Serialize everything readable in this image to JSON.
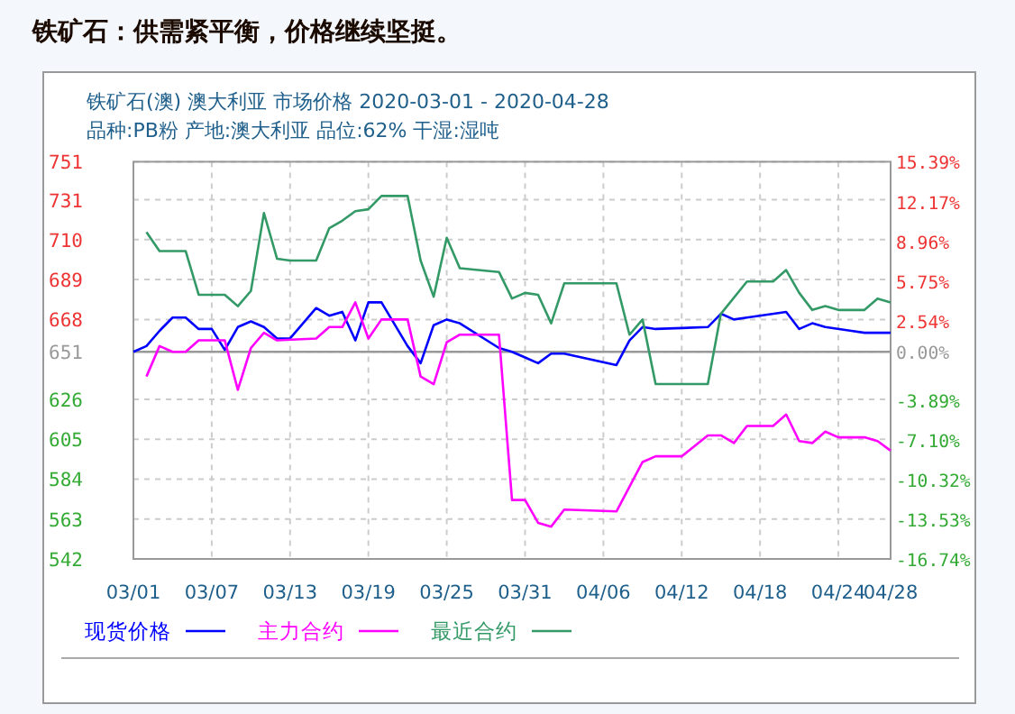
{
  "chart_data": {
    "type": "line",
    "title": "铁矿石：供需紧平衡，价格继续坚挺。",
    "subtitle": "铁矿石(澳) 澳大利亚 市场价格 2020-03-01 - 2020-04-28",
    "annotations": [
      "品种:PB粉 产地:澳大利亚 品位:62% 干湿:湿吨"
    ],
    "xlim": [
      "2020-03-01",
      "2020-04-28"
    ],
    "xticks": [
      {
        "value": "2020-03-01",
        "label": "03/01"
      },
      {
        "value": "2020-03-07",
        "label": "03/07"
      },
      {
        "value": "2020-03-13",
        "label": "03/13"
      },
      {
        "value": "2020-03-19",
        "label": "03/19"
      },
      {
        "value": "2020-03-25",
        "label": "03/25"
      },
      {
        "value": "2020-03-31",
        "label": "03/31"
      },
      {
        "value": "2020-04-06",
        "label": "04/06"
      },
      {
        "value": "2020-04-12",
        "label": "04/12"
      },
      {
        "value": "2020-04-18",
        "label": "04/18"
      },
      {
        "value": "2020-04-24",
        "label": "04/24"
      },
      {
        "value": "2020-04-28",
        "label": "04/28"
      }
    ],
    "ylim": [
      542,
      751
    ],
    "yticks": [
      542,
      563,
      584,
      605,
      626,
      651,
      668,
      689,
      710,
      731,
      751
    ],
    "y2lim": [
      -16.74,
      15.39
    ],
    "y2ticks": [
      {
        "value": -16.74,
        "label": "-16.74%"
      },
      {
        "value": -13.53,
        "label": "-13.53%"
      },
      {
        "value": -10.32,
        "label": "-10.32%"
      },
      {
        "value": -7.1,
        "label": "-7.10%"
      },
      {
        "value": -3.89,
        "label": "-3.89%"
      },
      {
        "value": 0,
        "label": "0.00%"
      },
      {
        "value": 2.54,
        "label": "2.54%"
      },
      {
        "value": 5.75,
        "label": "5.75%"
      },
      {
        "value": 8.96,
        "label": "8.96%"
      },
      {
        "value": 12.17,
        "label": "12.17%"
      },
      {
        "value": 15.39,
        "label": "15.39%"
      }
    ],
    "ref_lines": [
      {
        "axis": "y",
        "value": 651,
        "color": "#999999"
      }
    ],
    "grid": true,
    "legend": "bottom",
    "line_style": "solid",
    "marker": "none",
    "series": [
      {
        "name": "现货价格",
        "color": "#0000ff",
        "x": [
          "2020-03-01",
          "2020-03-02",
          "2020-03-03",
          "2020-03-04",
          "2020-03-05",
          "2020-03-06",
          "2020-03-07",
          "2020-03-08",
          "2020-03-09",
          "2020-03-10",
          "2020-03-11",
          "2020-03-12",
          "2020-03-13",
          "2020-03-15",
          "2020-03-16",
          "2020-03-17",
          "2020-03-18",
          "2020-03-19",
          "2020-03-20",
          "2020-03-22",
          "2020-03-23",
          "2020-03-24",
          "2020-03-25",
          "2020-03-26",
          "2020-03-29",
          "2020-03-30",
          "2020-03-31",
          "2020-04-01",
          "2020-04-02",
          "2020-04-03",
          "2020-04-07",
          "2020-04-08",
          "2020-04-09",
          "2020-04-10",
          "2020-04-14",
          "2020-04-15",
          "2020-04-16",
          "2020-04-17",
          "2020-04-20",
          "2020-04-21",
          "2020-04-22",
          "2020-04-23",
          "2020-04-25",
          "2020-04-26",
          "2020-04-28"
        ],
        "values": [
          651,
          654,
          662,
          669,
          669,
          663,
          663,
          652,
          664,
          667,
          664,
          658,
          658,
          674,
          670,
          672,
          657,
          677,
          677,
          654,
          645,
          665,
          668,
          666,
          653,
          651,
          648,
          645,
          650,
          650,
          644,
          657,
          664,
          663,
          664,
          671,
          668,
          669,
          672,
          663,
          666,
          664,
          662,
          661,
          661
        ]
      },
      {
        "name": "主力合约",
        "color": "#ff00ff",
        "x": [
          "2020-03-02",
          "2020-03-03",
          "2020-03-04",
          "2020-03-05",
          "2020-03-06",
          "2020-03-08",
          "2020-03-09",
          "2020-03-10",
          "2020-03-11",
          "2020-03-12",
          "2020-03-15",
          "2020-03-16",
          "2020-03-17",
          "2020-03-18",
          "2020-03-19",
          "2020-03-20",
          "2020-03-22",
          "2020-03-23",
          "2020-03-24",
          "2020-03-25",
          "2020-03-26",
          "2020-03-29",
          "2020-03-30",
          "2020-03-31",
          "2020-04-01",
          "2020-04-02",
          "2020-04-03",
          "2020-04-07",
          "2020-04-09",
          "2020-04-10",
          "2020-04-12",
          "2020-04-14",
          "2020-04-15",
          "2020-04-16",
          "2020-04-17",
          "2020-04-19",
          "2020-04-20",
          "2020-04-21",
          "2020-04-22",
          "2020-04-23",
          "2020-04-24",
          "2020-04-26",
          "2020-04-27",
          "2020-04-28"
        ],
        "values": [
          638,
          654,
          651,
          651,
          657,
          657,
          631,
          653,
          661,
          657,
          658,
          664,
          664,
          677,
          658,
          668,
          668,
          638,
          634,
          656,
          660,
          660,
          573,
          573,
          561,
          559,
          568,
          567,
          593,
          596,
          596,
          607,
          607,
          603,
          612,
          612,
          618,
          604,
          603,
          609,
          606,
          606,
          604,
          599
        ]
      },
      {
        "name": "最近合约",
        "color": "#339966",
        "x": [
          "2020-03-02",
          "2020-03-03",
          "2020-03-05",
          "2020-03-06",
          "2020-03-08",
          "2020-03-09",
          "2020-03-10",
          "2020-03-11",
          "2020-03-12",
          "2020-03-13",
          "2020-03-15",
          "2020-03-16",
          "2020-03-17",
          "2020-03-18",
          "2020-03-19",
          "2020-03-20",
          "2020-03-22",
          "2020-03-23",
          "2020-03-24",
          "2020-03-25",
          "2020-03-26",
          "2020-03-29",
          "2020-03-30",
          "2020-03-31",
          "2020-04-01",
          "2020-04-02",
          "2020-04-03",
          "2020-04-07",
          "2020-04-08",
          "2020-04-09",
          "2020-04-10",
          "2020-04-14",
          "2020-04-15",
          "2020-04-17",
          "2020-04-19",
          "2020-04-20",
          "2020-04-21",
          "2020-04-22",
          "2020-04-23",
          "2020-04-24",
          "2020-04-26",
          "2020-04-27",
          "2020-04-28"
        ],
        "values": [
          714,
          704,
          704,
          681,
          681,
          675,
          683,
          724,
          700,
          699,
          699,
          716,
          720,
          725,
          726,
          733,
          733,
          699,
          680,
          711,
          695,
          693,
          679,
          682,
          681,
          666,
          687,
          687,
          660,
          668,
          634,
          634,
          671,
          688,
          688,
          694,
          682,
          673,
          675,
          673,
          673,
          679,
          677
        ]
      }
    ]
  }
}
